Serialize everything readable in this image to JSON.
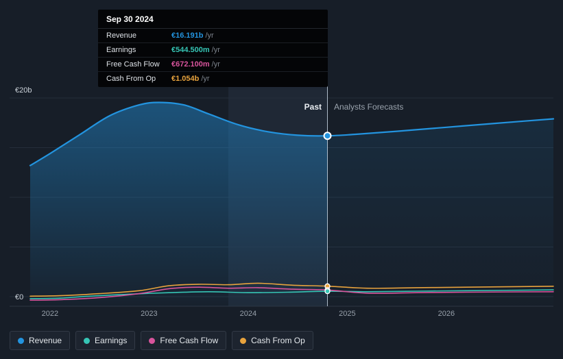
{
  "page": {
    "background": "#171e28"
  },
  "tooltip": {
    "date": "Sep 30 2024",
    "rows": [
      {
        "label": "Revenue",
        "value": "€16.191b",
        "unit": "/yr"
      },
      {
        "label": "Earnings",
        "value": "€544.500m",
        "unit": "/yr"
      },
      {
        "label": "Free Cash Flow",
        "value": "€672.100m",
        "unit": "/yr"
      },
      {
        "label": "Cash From Op",
        "value": "€1.054b",
        "unit": "/yr"
      }
    ]
  },
  "timeline": {
    "past_label": "Past",
    "forecast_label": "Analysts Forecasts"
  },
  "legend": {
    "items": [
      {
        "label": "Revenue"
      },
      {
        "label": "Earnings"
      },
      {
        "label": "Free Cash Flow"
      },
      {
        "label": "Cash From Op"
      }
    ]
  },
  "chart_data": {
    "type": "line",
    "currency": "EUR",
    "value_unit": "billions",
    "y_axis": {
      "range": [
        0,
        20
      ],
      "gridline_values": [
        0,
        5,
        10,
        15,
        20
      ],
      "ticks": [
        {
          "value": 20,
          "label": "€20b"
        },
        {
          "value": 0,
          "label": "€0"
        }
      ]
    },
    "x_axis": {
      "range": [
        2021.8,
        2027.08
      ],
      "ticks": [
        {
          "value": 2022,
          "label": "2022"
        },
        {
          "value": 2023,
          "label": "2023"
        },
        {
          "value": 2024,
          "label": "2024"
        },
        {
          "value": 2025,
          "label": "2025"
        },
        {
          "value": 2026,
          "label": "2026"
        }
      ]
    },
    "divider": {
      "x": 2024.8,
      "date": "Sep 30 2024"
    },
    "highlight_band": {
      "from": 2023.8,
      "to": 2024.8
    },
    "series": [
      {
        "name": "Revenue",
        "color": "#2394df",
        "value_at_divider": "€16.191b",
        "points": [
          [
            2021.8,
            13.2
          ],
          [
            2022.0,
            14.4
          ],
          [
            2022.3,
            16.3
          ],
          [
            2022.6,
            18.2
          ],
          [
            2022.9,
            19.3
          ],
          [
            2023.1,
            19.55
          ],
          [
            2023.35,
            19.3
          ],
          [
            2023.6,
            18.4
          ],
          [
            2023.9,
            17.3
          ],
          [
            2024.2,
            16.6
          ],
          [
            2024.5,
            16.25
          ],
          [
            2024.8,
            16.191
          ],
          [
            2025.1,
            16.35
          ],
          [
            2025.5,
            16.65
          ],
          [
            2026.0,
            17.05
          ],
          [
            2026.5,
            17.45
          ],
          [
            2027.08,
            17.9
          ]
        ]
      },
      {
        "name": "Earnings",
        "color": "#36c5b5",
        "value_at_divider": "€544.500m",
        "points": [
          [
            2021.8,
            -0.2
          ],
          [
            2022.1,
            -0.15
          ],
          [
            2022.4,
            0.05
          ],
          [
            2022.8,
            0.25
          ],
          [
            2023.2,
            0.4
          ],
          [
            2023.6,
            0.5
          ],
          [
            2024.0,
            0.4
          ],
          [
            2024.4,
            0.45
          ],
          [
            2024.8,
            0.5445
          ],
          [
            2025.2,
            0.5
          ],
          [
            2025.7,
            0.55
          ],
          [
            2026.2,
            0.6
          ],
          [
            2027.08,
            0.68
          ]
        ]
      },
      {
        "name": "Free Cash Flow",
        "color": "#d8549c",
        "value_at_divider": "€672.100m",
        "points": [
          [
            2021.8,
            -0.35
          ],
          [
            2022.1,
            -0.3
          ],
          [
            2022.5,
            -0.1
          ],
          [
            2022.9,
            0.3
          ],
          [
            2023.2,
            0.8
          ],
          [
            2023.5,
            0.95
          ],
          [
            2023.8,
            0.85
          ],
          [
            2024.1,
            0.9
          ],
          [
            2024.45,
            0.75
          ],
          [
            2024.8,
            0.6721
          ],
          [
            2025.2,
            0.35
          ],
          [
            2025.7,
            0.4
          ],
          [
            2026.2,
            0.45
          ],
          [
            2027.08,
            0.5
          ]
        ]
      },
      {
        "name": "Cash From Op",
        "color": "#e8a33d",
        "value_at_divider": "€1.054b",
        "points": [
          [
            2021.8,
            0.05
          ],
          [
            2022.1,
            0.1
          ],
          [
            2022.5,
            0.3
          ],
          [
            2022.9,
            0.6
          ],
          [
            2023.2,
            1.1
          ],
          [
            2023.5,
            1.25
          ],
          [
            2023.8,
            1.2
          ],
          [
            2024.1,
            1.35
          ],
          [
            2024.45,
            1.15
          ],
          [
            2024.8,
            1.054
          ],
          [
            2025.2,
            0.85
          ],
          [
            2025.7,
            0.9
          ],
          [
            2026.2,
            0.95
          ],
          [
            2027.08,
            1.05
          ]
        ]
      }
    ]
  }
}
